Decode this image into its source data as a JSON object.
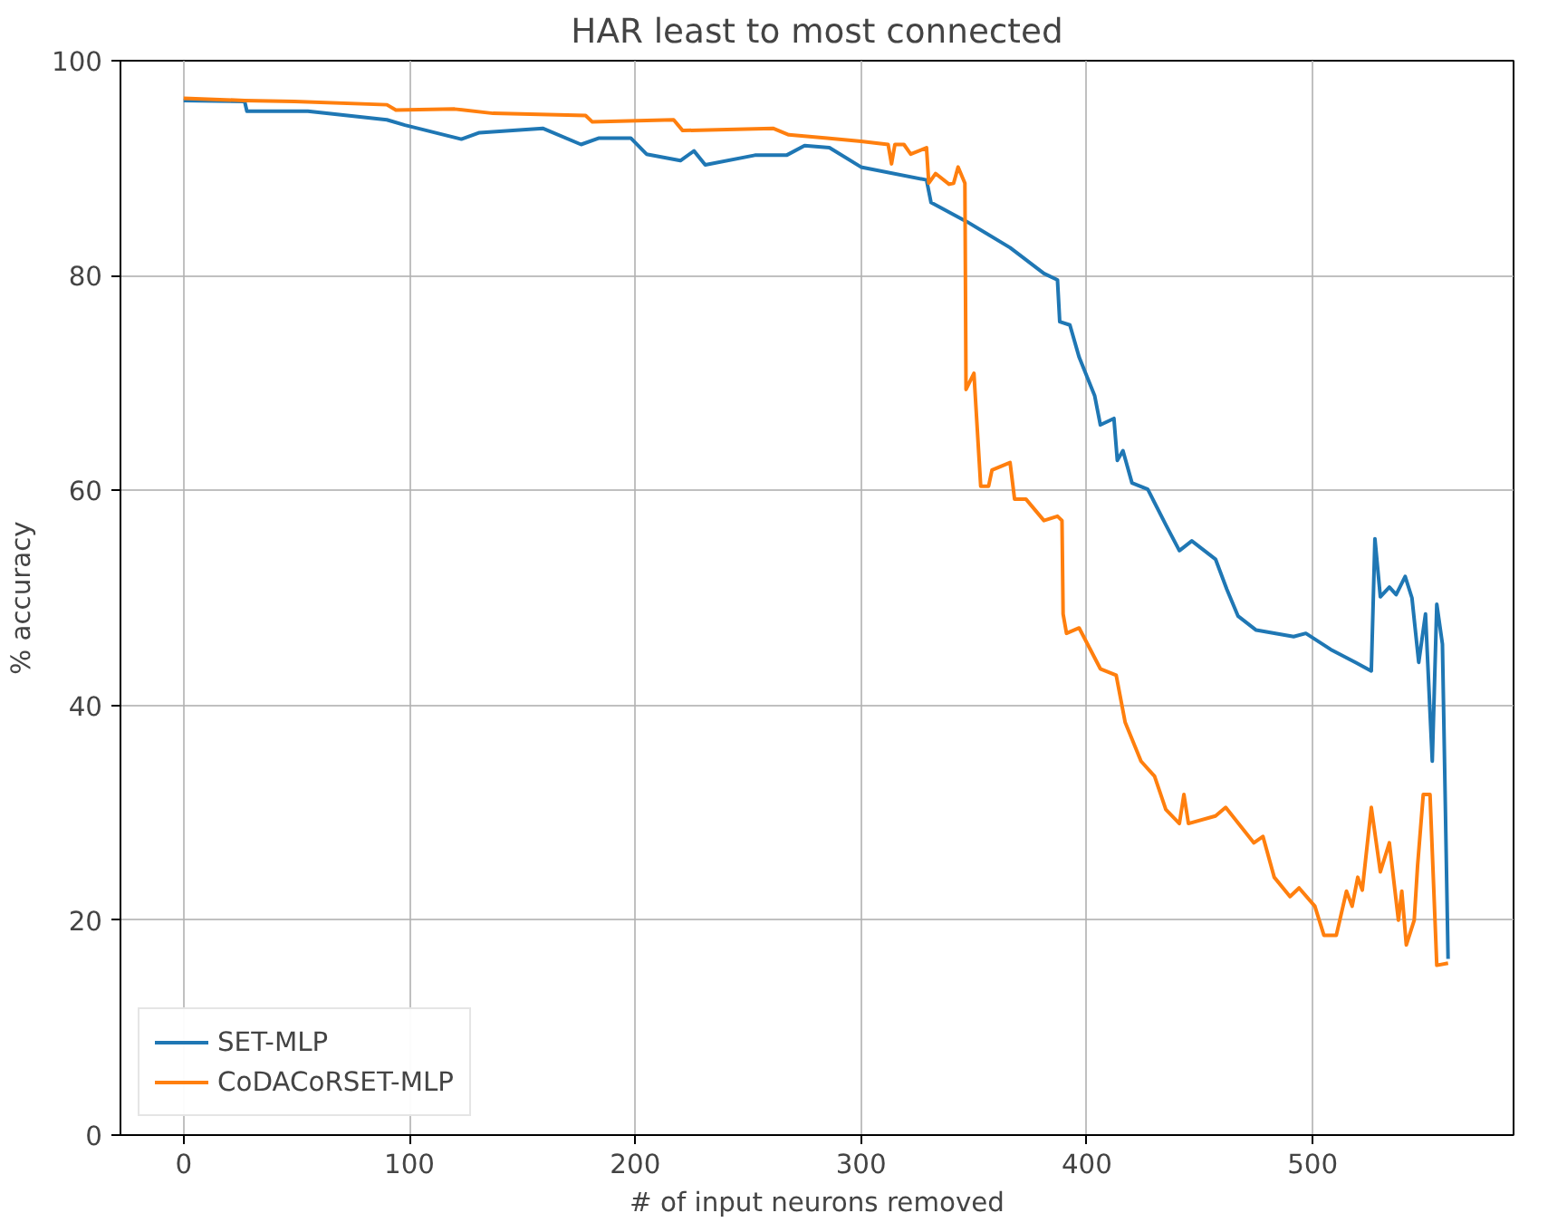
{
  "chart_data": {
    "type": "line",
    "title": "HAR least to most connected",
    "xlabel": "# of input neurons removed",
    "ylabel": "% accuracy",
    "xlim": [
      -28,
      589
    ],
    "ylim": [
      0,
      100
    ],
    "xticks": [
      0,
      100,
      200,
      300,
      400,
      500
    ],
    "yticks": [
      0,
      20,
      40,
      60,
      80,
      100
    ],
    "grid": true,
    "legend": "bottom left",
    "line_style": "solid",
    "series": [
      {
        "name": "SET-MLP",
        "color": "#1f77b4",
        "x": [
          0,
          27,
          28,
          55,
          90,
          98,
          123,
          131,
          159,
          176,
          184,
          198,
          205,
          220,
          226,
          231,
          253,
          267,
          275,
          286,
          300,
          329,
          331,
          347,
          366,
          381,
          387,
          388,
          392.5,
          396.6,
          403.5,
          406,
          412,
          413.5,
          416,
          420,
          427,
          435,
          441,
          446.5,
          457,
          462,
          467,
          475,
          491.6,
          497,
          508,
          519,
          526,
          527.6,
          530,
          534,
          537,
          541,
          544,
          547,
          550,
          553,
          555,
          557.5,
          560
        ],
        "values": [
          96.3,
          96.2,
          95.3,
          95.3,
          94.5,
          94.0,
          92.7,
          93.3,
          93.7,
          92.2,
          92.8,
          92.8,
          91.3,
          90.7,
          91.6,
          90.3,
          91.2,
          91.2,
          92.1,
          91.9,
          90.1,
          88.9,
          86.8,
          85.0,
          82.6,
          80.2,
          79.6,
          75.7,
          75.4,
          72.4,
          68.8,
          66.1,
          66.7,
          62.8,
          63.7,
          60.7,
          60.1,
          56.8,
          54.4,
          55.3,
          53.6,
          50.8,
          48.3,
          47.0,
          46.4,
          46.7,
          45.2,
          44.0,
          43.2,
          55.5,
          50.1,
          51.0,
          50.3,
          52.0,
          50.0,
          44.0,
          48.5,
          34.8,
          49.4,
          45.7,
          16.4
        ]
      },
      {
        "name": "CoDACoRSET-MLP",
        "color": "#ff7f0e",
        "x": [
          0,
          27,
          49,
          90,
          94,
          120,
          137,
          178,
          181,
          217,
          221,
          261,
          268,
          285,
          300,
          312,
          313.5,
          315,
          319,
          322,
          329,
          330,
          333,
          339,
          341,
          343,
          346,
          346.5,
          350,
          353,
          356.5,
          358,
          366,
          368,
          373,
          381,
          387,
          389,
          389.5,
          391,
          396.6,
          406,
          413,
          417,
          424,
          430,
          435,
          441,
          443,
          445,
          457,
          461.5,
          474,
          478,
          483,
          490,
          494,
          501,
          505,
          510.5,
          515,
          517.5,
          520,
          522,
          526,
          530,
          534,
          538,
          539.5,
          541.5,
          545,
          546.5,
          549,
          552,
          555,
          560
        ],
        "values": [
          96.5,
          96.3,
          96.2,
          95.9,
          95.4,
          95.5,
          95.1,
          94.9,
          94.3,
          94.5,
          93.5,
          93.7,
          93.1,
          92.8,
          92.5,
          92.2,
          90.4,
          92.2,
          92.2,
          91.3,
          91.9,
          88.6,
          89.5,
          88.5,
          88.6,
          90.1,
          88.6,
          69.4,
          70.9,
          60.4,
          60.4,
          61.9,
          62.6,
          59.2,
          59.2,
          57.2,
          57.6,
          57.2,
          48.5,
          46.7,
          47.2,
          43.4,
          42.8,
          38.4,
          34.8,
          33.4,
          30.3,
          29.0,
          31.7,
          29.0,
          29.7,
          30.5,
          27.2,
          27.8,
          24.0,
          22.2,
          23.0,
          21.3,
          18.6,
          18.6,
          22.7,
          21.3,
          24.0,
          22.8,
          30.5,
          24.5,
          27.2,
          20.0,
          22.7,
          17.7,
          20.0,
          25.1,
          31.7,
          31.7,
          15.8,
          16.0
        ]
      }
    ]
  }
}
